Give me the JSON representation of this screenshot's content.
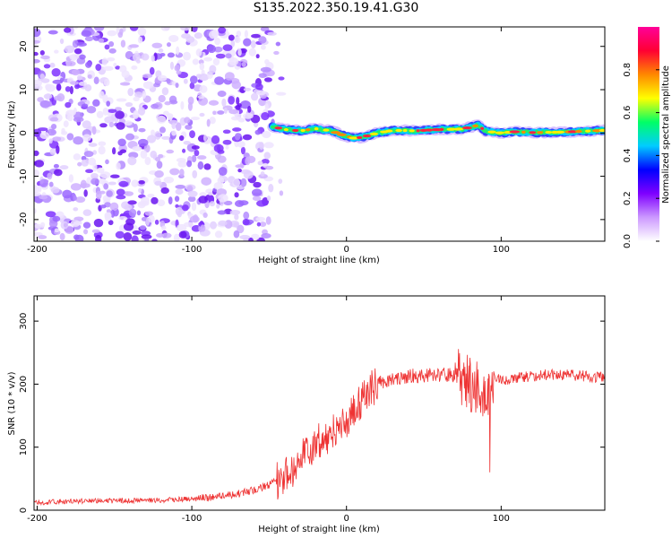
{
  "title": "S135.2022.350.19.41.G30",
  "chart_data": [
    {
      "type": "heatmap",
      "title": "S135.2022.350.19.41.G30",
      "xlabel": "Height of straight line (km)",
      "ylabel": "Frequency (Hz)",
      "xlim": [
        -202,
        167
      ],
      "ylim": [
        -25,
        24.5
      ],
      "xticks": [
        -200,
        -100,
        0,
        100
      ],
      "yticks": [
        -20,
        -10,
        0,
        10,
        20
      ],
      "noise_region_x": [
        -202,
        -48
      ],
      "signal_band": {
        "x": [
          -48,
          -40,
          -30,
          -20,
          -10,
          0,
          5,
          10,
          20,
          30,
          45,
          60,
          75,
          85,
          90,
          100,
          110,
          120,
          140,
          160,
          167
        ],
        "freq": [
          1.5,
          0.8,
          0.5,
          1.0,
          0.5,
          -0.8,
          -1.2,
          -1.0,
          0.0,
          0.6,
          0.5,
          0.8,
          0.9,
          1.8,
          0.4,
          0.0,
          0.3,
          0.1,
          0.2,
          0.5,
          0.6
        ]
      },
      "colorbar": {
        "label": "Normalized spectral amplitude",
        "ticks": [
          0.0,
          0.2,
          0.4,
          0.6,
          0.8
        ],
        "range": [
          0,
          1
        ],
        "colors": [
          "#ffffff",
          "#cc99ff",
          "#7f00ff",
          "#0000ff",
          "#00ccff",
          "#00ff66",
          "#ffff00",
          "#ff8800",
          "#ff0033",
          "#ff0099"
        ]
      }
    },
    {
      "type": "line",
      "xlabel": "Height of straight line (km)",
      "ylabel": "SNR (10 * v/v)",
      "xlim": [
        -202,
        167
      ],
      "ylim": [
        0,
        340
      ],
      "xticks": [
        -200,
        -100,
        0,
        100
      ],
      "yticks": [
        0,
        100,
        200,
        300
      ],
      "color": "#ee3333",
      "x": [
        -202,
        -180,
        -160,
        -140,
        -120,
        -100,
        -80,
        -70,
        -60,
        -50,
        -42,
        -35,
        -30,
        -25,
        -20,
        -15,
        -10,
        -5,
        0,
        5,
        10,
        15,
        20,
        25,
        30,
        40,
        50,
        60,
        70,
        75,
        80,
        85,
        90,
        93,
        95,
        100,
        110,
        120,
        130,
        140,
        150,
        160,
        167
      ],
      "y": [
        12,
        14,
        15,
        15,
        16,
        18,
        22,
        26,
        32,
        40,
        50,
        65,
        80,
        95,
        105,
        115,
        120,
        130,
        145,
        160,
        175,
        190,
        200,
        205,
        210,
        212,
        214,
        215,
        215,
        210,
        200,
        190,
        180,
        200,
        215,
        205,
        210,
        212,
        215,
        215,
        213,
        212,
        210
      ]
    }
  ]
}
